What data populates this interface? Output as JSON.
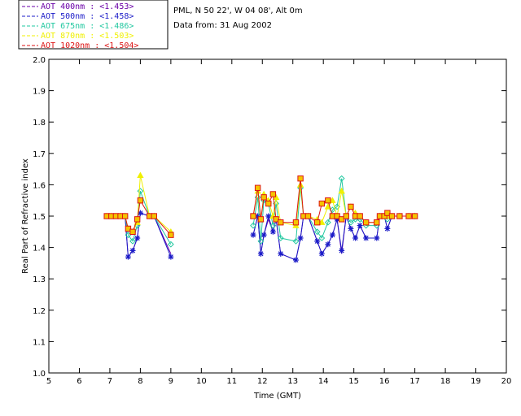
{
  "header": {
    "location": "PML, N 50 22', W 04 08', Alt 0m",
    "date_line": "Data from: 31 Aug 2002"
  },
  "chart_data": {
    "type": "line",
    "xlabel": "Time (GMT)",
    "ylabel": "Real Part of Refractive index",
    "xlim": [
      5,
      20
    ],
    "ylim": [
      1.0,
      2.0
    ],
    "x_ticks": [
      "5",
      "6",
      "7",
      "8",
      "9",
      "10",
      "11",
      "12",
      "13",
      "14",
      "15",
      "16",
      "17",
      "18",
      "19",
      "20"
    ],
    "y_ticks": [
      "1.0",
      "1.1",
      "1.2",
      "1.3",
      "1.4",
      "1.5",
      "1.6",
      "1.7",
      "1.8",
      "1.9",
      "2.0"
    ],
    "legend_position": "top-left",
    "series": [
      {
        "name": "AOT  400nm : <1.453>",
        "color": "#6a00a8",
        "marker": "none",
        "points": [
          [
            6.9,
            1.5
          ],
          [
            7.05,
            1.5
          ],
          [
            7.2,
            1.5
          ],
          [
            7.35,
            1.5
          ],
          [
            7.5,
            1.5
          ],
          [
            7.6,
            1.37
          ],
          [
            7.75,
            1.39
          ],
          [
            7.9,
            1.43
          ],
          [
            8.0,
            1.51
          ],
          [
            8.3,
            1.5
          ],
          [
            8.45,
            1.5
          ],
          [
            9.0,
            1.38
          ],
          [
            11.7,
            1.44
          ],
          [
            11.85,
            1.5
          ],
          [
            11.95,
            1.38
          ],
          [
            12.05,
            1.44
          ],
          [
            12.2,
            1.49
          ],
          [
            12.35,
            1.45
          ],
          [
            12.45,
            1.49
          ],
          [
            12.6,
            1.38
          ],
          [
            13.1,
            1.36
          ],
          [
            13.25,
            1.43
          ],
          [
            13.35,
            1.5
          ],
          [
            13.5,
            1.5
          ],
          [
            13.8,
            1.42
          ],
          [
            13.95,
            1.38
          ],
          [
            14.15,
            1.41
          ],
          [
            14.3,
            1.44
          ],
          [
            14.45,
            1.49
          ],
          [
            14.6,
            1.38
          ],
          [
            14.75,
            1.5
          ],
          [
            14.9,
            1.46
          ],
          [
            15.05,
            1.43
          ],
          [
            15.2,
            1.47
          ],
          [
            15.4,
            1.43
          ],
          [
            15.75,
            1.43
          ],
          [
            15.85,
            1.5
          ],
          [
            16.0,
            1.5
          ],
          [
            16.1,
            1.46
          ],
          [
            16.25,
            1.5
          ],
          [
            16.5,
            1.5
          ],
          [
            16.8,
            1.5
          ],
          [
            17.0,
            1.5
          ]
        ]
      },
      {
        "name": "AOT  500nm : <1.458>",
        "color": "#1c1cc8",
        "marker": "asterisk",
        "points": [
          [
            6.9,
            1.5
          ],
          [
            7.05,
            1.5
          ],
          [
            7.2,
            1.5
          ],
          [
            7.35,
            1.5
          ],
          [
            7.5,
            1.5
          ],
          [
            7.6,
            1.37
          ],
          [
            7.75,
            1.39
          ],
          [
            7.9,
            1.43
          ],
          [
            8.0,
            1.51
          ],
          [
            8.3,
            1.5
          ],
          [
            8.45,
            1.5
          ],
          [
            9.0,
            1.37
          ],
          [
            11.7,
            1.44
          ],
          [
            11.85,
            1.5
          ],
          [
            11.95,
            1.38
          ],
          [
            12.05,
            1.44
          ],
          [
            12.2,
            1.5
          ],
          [
            12.35,
            1.45
          ],
          [
            12.45,
            1.49
          ],
          [
            12.6,
            1.38
          ],
          [
            13.1,
            1.36
          ],
          [
            13.25,
            1.43
          ],
          [
            13.35,
            1.5
          ],
          [
            13.5,
            1.5
          ],
          [
            13.8,
            1.42
          ],
          [
            13.95,
            1.38
          ],
          [
            14.15,
            1.41
          ],
          [
            14.3,
            1.44
          ],
          [
            14.45,
            1.49
          ],
          [
            14.6,
            1.39
          ],
          [
            14.75,
            1.5
          ],
          [
            14.9,
            1.46
          ],
          [
            15.05,
            1.43
          ],
          [
            15.2,
            1.47
          ],
          [
            15.4,
            1.43
          ],
          [
            15.75,
            1.43
          ],
          [
            15.85,
            1.5
          ],
          [
            16.0,
            1.5
          ],
          [
            16.1,
            1.46
          ],
          [
            16.25,
            1.5
          ],
          [
            16.5,
            1.5
          ],
          [
            16.8,
            1.5
          ],
          [
            17.0,
            1.5
          ]
        ]
      },
      {
        "name": "AOT  675nm : <1.486>",
        "color": "#22c8a0",
        "marker": "diamond",
        "points": [
          [
            6.9,
            1.5
          ],
          [
            7.05,
            1.5
          ],
          [
            7.2,
            1.5
          ],
          [
            7.35,
            1.5
          ],
          [
            7.5,
            1.5
          ],
          [
            7.6,
            1.44
          ],
          [
            7.75,
            1.42
          ],
          [
            7.9,
            1.47
          ],
          [
            8.0,
            1.58
          ],
          [
            8.3,
            1.5
          ],
          [
            8.45,
            1.5
          ],
          [
            9.0,
            1.41
          ],
          [
            11.7,
            1.47
          ],
          [
            11.85,
            1.56
          ],
          [
            11.95,
            1.42
          ],
          [
            12.05,
            1.55
          ],
          [
            12.2,
            1.54
          ],
          [
            12.35,
            1.47
          ],
          [
            12.45,
            1.54
          ],
          [
            12.6,
            1.43
          ],
          [
            13.1,
            1.42
          ],
          [
            13.25,
            1.59
          ],
          [
            13.35,
            1.5
          ],
          [
            13.5,
            1.5
          ],
          [
            13.8,
            1.45
          ],
          [
            13.95,
            1.43
          ],
          [
            14.15,
            1.48
          ],
          [
            14.3,
            1.52
          ],
          [
            14.45,
            1.53
          ],
          [
            14.6,
            1.62
          ],
          [
            14.75,
            1.5
          ],
          [
            14.9,
            1.48
          ],
          [
            15.05,
            1.49
          ],
          [
            15.2,
            1.49
          ],
          [
            15.4,
            1.47
          ],
          [
            15.75,
            1.47
          ],
          [
            15.85,
            1.5
          ],
          [
            16.0,
            1.5
          ],
          [
            16.1,
            1.49
          ],
          [
            16.25,
            1.5
          ],
          [
            16.5,
            1.5
          ],
          [
            16.8,
            1.5
          ],
          [
            17.0,
            1.5
          ]
        ]
      },
      {
        "name": "AOT  870nm : <1.503>",
        "color": "#f0f000",
        "marker": "triangle",
        "points": [
          [
            6.9,
            1.5
          ],
          [
            7.05,
            1.5
          ],
          [
            7.2,
            1.5
          ],
          [
            7.35,
            1.5
          ],
          [
            7.5,
            1.5
          ],
          [
            7.6,
            1.46
          ],
          [
            7.75,
            1.45
          ],
          [
            7.9,
            1.48
          ],
          [
            8.0,
            1.63
          ],
          [
            8.3,
            1.5
          ],
          [
            8.45,
            1.5
          ],
          [
            9.0,
            1.45
          ],
          [
            11.7,
            1.5
          ],
          [
            11.85,
            1.58
          ],
          [
            11.95,
            1.49
          ],
          [
            12.05,
            1.57
          ],
          [
            12.2,
            1.55
          ],
          [
            12.35,
            1.5
          ],
          [
            12.45,
            1.56
          ],
          [
            12.6,
            1.48
          ],
          [
            13.1,
            1.47
          ],
          [
            13.25,
            1.6
          ],
          [
            13.35,
            1.5
          ],
          [
            13.5,
            1.5
          ],
          [
            13.8,
            1.49
          ],
          [
            13.95,
            1.48
          ],
          [
            14.15,
            1.53
          ],
          [
            14.3,
            1.55
          ],
          [
            14.45,
            1.5
          ],
          [
            14.6,
            1.58
          ],
          [
            14.75,
            1.5
          ],
          [
            14.9,
            1.53
          ],
          [
            15.05,
            1.51
          ],
          [
            15.2,
            1.5
          ],
          [
            15.4,
            1.48
          ],
          [
            15.75,
            1.48
          ],
          [
            15.85,
            1.5
          ],
          [
            16.0,
            1.5
          ],
          [
            16.1,
            1.5
          ],
          [
            16.25,
            1.5
          ],
          [
            16.5,
            1.5
          ],
          [
            16.8,
            1.5
          ],
          [
            17.0,
            1.5
          ]
        ]
      },
      {
        "name": "AOT 1020nm : <1.504>",
        "color": "#dc1414",
        "marker": "square",
        "points": [
          [
            6.9,
            1.5
          ],
          [
            7.05,
            1.5
          ],
          [
            7.2,
            1.5
          ],
          [
            7.35,
            1.5
          ],
          [
            7.5,
            1.5
          ],
          [
            7.6,
            1.46
          ],
          [
            7.75,
            1.45
          ],
          [
            7.9,
            1.49
          ],
          [
            8.0,
            1.55
          ],
          [
            8.3,
            1.5
          ],
          [
            8.45,
            1.5
          ],
          [
            9.0,
            1.44
          ],
          [
            11.7,
            1.5
          ],
          [
            11.85,
            1.59
          ],
          [
            11.95,
            1.49
          ],
          [
            12.05,
            1.56
          ],
          [
            12.2,
            1.54
          ],
          [
            12.35,
            1.57
          ],
          [
            12.45,
            1.49
          ],
          [
            12.6,
            1.48
          ],
          [
            13.1,
            1.48
          ],
          [
            13.25,
            1.62
          ],
          [
            13.35,
            1.5
          ],
          [
            13.5,
            1.5
          ],
          [
            13.8,
            1.48
          ],
          [
            13.95,
            1.54
          ],
          [
            14.15,
            1.55
          ],
          [
            14.3,
            1.5
          ],
          [
            14.45,
            1.5
          ],
          [
            14.6,
            1.49
          ],
          [
            14.75,
            1.5
          ],
          [
            14.9,
            1.53
          ],
          [
            15.05,
            1.5
          ],
          [
            15.2,
            1.5
          ],
          [
            15.4,
            1.48
          ],
          [
            15.75,
            1.48
          ],
          [
            15.85,
            1.5
          ],
          [
            16.0,
            1.5
          ],
          [
            16.1,
            1.51
          ],
          [
            16.25,
            1.5
          ],
          [
            16.5,
            1.5
          ],
          [
            16.8,
            1.5
          ],
          [
            17.0,
            1.5
          ]
        ]
      }
    ]
  }
}
